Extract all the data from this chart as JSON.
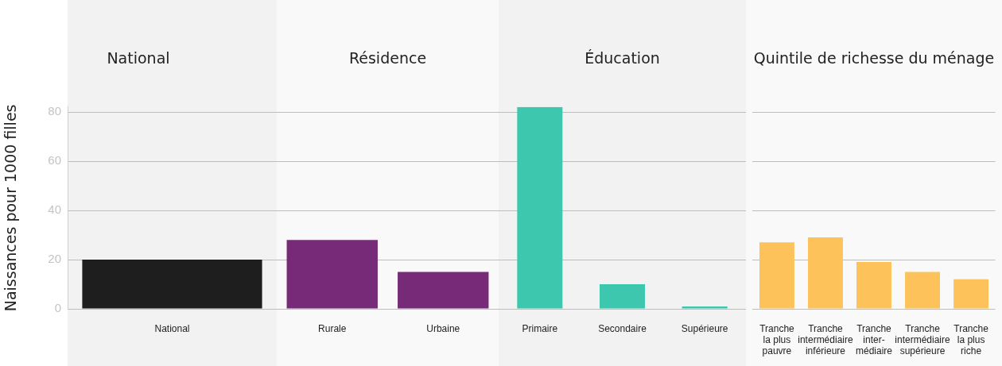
{
  "chart_data": [
    {
      "type": "bar",
      "title": "National",
      "ylabel": "Naissances pour 1000 filles",
      "categories": [
        "National"
      ],
      "values": [
        20
      ],
      "color": "#1e1e1e",
      "ylim": [
        0,
        82
      ],
      "yticks": [
        0,
        20,
        40,
        60,
        80
      ],
      "grid": "y"
    },
    {
      "type": "bar",
      "title": "Résidence",
      "categories": [
        "Rurale",
        "Urbaine"
      ],
      "values": [
        28,
        15
      ],
      "color": "#762a78",
      "yticks": [
        0,
        20,
        40,
        60,
        80
      ],
      "grid": "y",
      "tick_labels": "x"
    },
    {
      "type": "bar",
      "title": "Éducation",
      "categories": [
        "Primaire",
        "Secondaire",
        "Supérieure"
      ],
      "values": [
        82,
        10,
        1
      ],
      "color": "#3cc7ae",
      "yticks": [
        0,
        20,
        40,
        60,
        80
      ],
      "grid": "y",
      "tick_labels": "x"
    },
    {
      "type": "bar",
      "title": "Quintile de richesse du ménage",
      "categories": [
        "Tranche\nla plus\npauvre",
        "Tranche\nintermédiaire\ninférieure",
        "Tranche\ninter-\nmédiaire",
        "Tranche\nintermédiaire\nsupérieure",
        "Tranche\nla plus\nriche"
      ],
      "values": [
        27,
        29,
        19,
        15,
        12
      ],
      "color": "#fdc35a",
      "yticks": [
        0,
        20,
        40,
        60,
        80
      ],
      "grid": "y",
      "tick_labels": "x"
    }
  ]
}
